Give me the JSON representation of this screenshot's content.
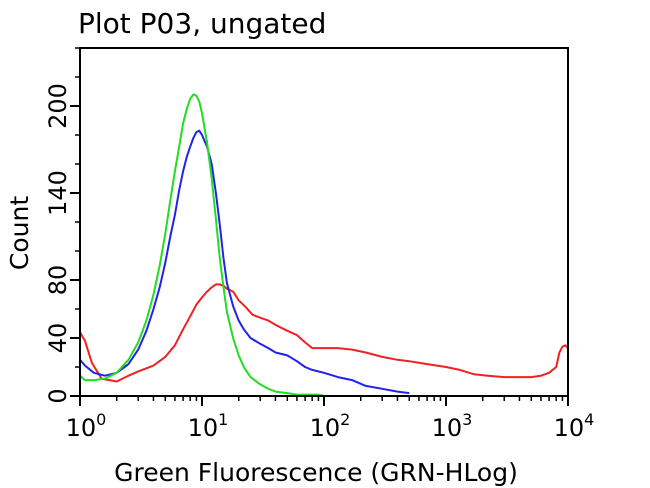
{
  "chart_data": {
    "type": "line",
    "title": "Plot P03, ungated",
    "xlabel": "Green Fluorescence (GRN-HLog)",
    "ylabel": "Count",
    "x_scale": "log",
    "xlim": [
      1,
      10000
    ],
    "ylim": [
      0,
      240
    ],
    "grid": false,
    "legend": "none",
    "x_ticks": [
      {
        "base": "10",
        "exp": "0",
        "value": 1
      },
      {
        "base": "10",
        "exp": "1",
        "value": 10
      },
      {
        "base": "10",
        "exp": "2",
        "value": 100
      },
      {
        "base": "10",
        "exp": "3",
        "value": 1000
      },
      {
        "base": "10",
        "exp": "4",
        "value": 10000
      }
    ],
    "y_ticks": [
      "0",
      "40",
      "80",
      "140",
      "200"
    ],
    "y_tick_values": [
      0,
      40,
      80,
      140,
      200
    ],
    "series": [
      {
        "color": "#ee2222",
        "x": [
          1,
          1.1,
          1.25,
          1.5,
          2,
          2.5,
          3,
          4,
          5,
          6,
          7,
          8,
          9,
          10,
          11,
          12,
          13,
          14,
          15,
          16,
          18,
          20,
          23,
          26,
          30,
          35,
          40,
          50,
          60,
          70,
          80,
          100,
          130,
          170,
          220,
          300,
          400,
          500,
          700,
          1000,
          1300,
          1700,
          2200,
          3000,
          4000,
          5000,
          6000,
          7000,
          8000,
          8500,
          9000,
          9500,
          10000
        ],
        "y": [
          44,
          38,
          23,
          12,
          10,
          14,
          17,
          21,
          27,
          35,
          46,
          55,
          63,
          68,
          72,
          75,
          77,
          77,
          76,
          74,
          72,
          66,
          61,
          56,
          54,
          52,
          49,
          45,
          42,
          37,
          33,
          33,
          33,
          32,
          30,
          27,
          25,
          24,
          22,
          20,
          18,
          15,
          14,
          13,
          13,
          13,
          14,
          16,
          20,
          30,
          34,
          35,
          33
        ]
      },
      {
        "color": "#2222ee",
        "x": [
          1,
          1.1,
          1.3,
          1.6,
          2,
          2.5,
          3,
          3.5,
          4,
          4.5,
          5,
          5.5,
          6,
          6.5,
          7,
          7.5,
          8,
          8.5,
          9,
          9.5,
          10,
          11,
          12,
          13,
          14,
          15,
          16,
          18,
          20,
          22,
          25,
          30,
          35,
          40,
          50,
          60,
          70,
          80,
          100,
          130,
          170,
          220,
          300,
          400,
          500
        ],
        "y": [
          25,
          21,
          16,
          14,
          16,
          22,
          32,
          45,
          60,
          75,
          92,
          110,
          125,
          142,
          155,
          165,
          172,
          178,
          182,
          183,
          180,
          172,
          160,
          140,
          118,
          95,
          78,
          62,
          52,
          46,
          40,
          36,
          33,
          30,
          28,
          24,
          20,
          18,
          16,
          13,
          11,
          7,
          5,
          3,
          2
        ]
      },
      {
        "color": "#22dd22",
        "x": [
          1,
          1.1,
          1.3,
          1.6,
          2,
          2.5,
          3,
          3.5,
          4,
          4.5,
          5,
          5.5,
          6,
          6.5,
          7,
          7.5,
          8,
          8.5,
          9,
          9.5,
          10,
          11,
          12,
          13,
          14,
          15,
          16,
          18,
          20,
          22,
          25,
          30,
          35,
          40,
          50,
          60,
          70,
          80,
          90,
          100
        ],
        "y": [
          14,
          11,
          11,
          12,
          16,
          25,
          37,
          52,
          70,
          90,
          112,
          135,
          155,
          172,
          188,
          198,
          205,
          208,
          207,
          203,
          195,
          175,
          150,
          122,
          95,
          75,
          58,
          40,
          28,
          20,
          13,
          8,
          5,
          3,
          2,
          1,
          1,
          1,
          1,
          0
        ]
      }
    ]
  }
}
